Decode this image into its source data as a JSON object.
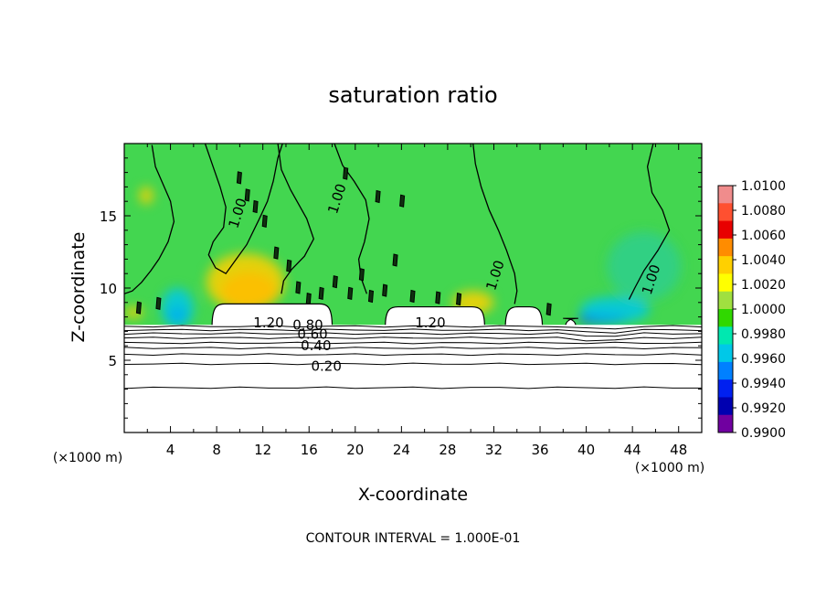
{
  "chart_data": {
    "type": "heatmap",
    "title": "saturation ratio",
    "xlabel": "X-coordinate",
    "ylabel": "Z-coordinate",
    "x_unit_label_left": "(×1000 m)",
    "x_unit_label_right": "(×1000 m)",
    "xlim": [
      0,
      50
    ],
    "ylim": [
      0,
      20
    ],
    "x_ticks": [
      4,
      8,
      12,
      16,
      20,
      24,
      28,
      32,
      36,
      40,
      44,
      48
    ],
    "y_ticks": [
      5,
      10,
      15
    ],
    "colorbar": {
      "min": 0.99,
      "max": 1.01,
      "labels": [
        "1.0100",
        "1.0080",
        "1.0060",
        "1.0040",
        "1.0020",
        "1.0000",
        "0.9980",
        "0.9960",
        "0.9940",
        "0.9920",
        "0.9900"
      ],
      "label_values": [
        1.01,
        1.008,
        1.006,
        1.004,
        1.002,
        1.0,
        0.998,
        0.996,
        0.994,
        0.992,
        0.99
      ],
      "colors": [
        "#f08c8c",
        "#ff5030",
        "#e80000",
        "#ff8c00",
        "#ffd000",
        "#ffff00",
        "#a0e040",
        "#30d800",
        "#00e8b0",
        "#00c8e8",
        "#0080ff",
        "#0020f0",
        "#0000b0",
        "#7000a0"
      ]
    },
    "background_value_color": "#43d650",
    "contour_interval_text": "CONTOUR INTERVAL = 1.000E-01",
    "contour_labels": [
      {
        "text": "1.00",
        "x": 18.8,
        "z": 16.4
      },
      {
        "text": "1.00",
        "x": 10.2,
        "z": 15.4
      },
      {
        "text": "1.00",
        "x": 32.5,
        "z": 11.1
      },
      {
        "text": "1.00",
        "x": 46.0,
        "z": 10.8
      },
      {
        "text": "1.20",
        "x": 12.5,
        "z": 7.6
      },
      {
        "text": "0.80",
        "x": 15.9,
        "z": 7.45
      },
      {
        "text": "0.60",
        "x": 16.3,
        "z": 6.8
      },
      {
        "text": "0.40",
        "x": 16.6,
        "z": 6.0
      },
      {
        "text": "0.20",
        "x": 17.5,
        "z": 4.6
      },
      {
        "text": "1.20",
        "x": 26.5,
        "z": 7.6
      }
    ],
    "low_contour_levels": [
      {
        "z": 7.35
      },
      {
        "z": 7.1
      },
      {
        "z": 6.85
      },
      {
        "z": 6.55
      },
      {
        "z": 6.2
      },
      {
        "z": 5.85
      },
      {
        "z": 5.4
      },
      {
        "z": 4.75
      },
      {
        "z": 3.1
      }
    ],
    "cloud_regions": [
      {
        "x0": 7.6,
        "x1": 18.0,
        "ztop": 8.9
      },
      {
        "x0": 22.6,
        "x1": 31.2,
        "ztop": 8.7
      },
      {
        "x0": 33.0,
        "x1": 36.2,
        "ztop": 8.7
      },
      {
        "x0": 38.2,
        "x1": 39.1,
        "ztop": 7.9
      }
    ],
    "anomalies": [
      {
        "x": 10.8,
        "z": 9.8,
        "rx": 2.4,
        "rz": 1.3,
        "color": "#ff5500"
      },
      {
        "x": 10.5,
        "z": 10.4,
        "rx": 3.4,
        "rz": 2.0,
        "color": "#ffd000"
      },
      {
        "x": 4.6,
        "z": 8.1,
        "rx": 0.9,
        "rz": 0.6,
        "color": "#0030ff"
      },
      {
        "x": 4.6,
        "z": 8.6,
        "rx": 1.4,
        "rz": 1.4,
        "color": "#00c8e8"
      },
      {
        "x": 30.2,
        "z": 9.0,
        "rx": 1.8,
        "rz": 0.8,
        "color": "#ffd000"
      },
      {
        "x": 41.5,
        "z": 7.9,
        "rx": 2.2,
        "rz": 0.4,
        "color": "#0030ff"
      },
      {
        "x": 42.5,
        "z": 8.5,
        "rx": 3.0,
        "rz": 0.9,
        "color": "#00c8e8"
      },
      {
        "x": 0.8,
        "z": 8.3,
        "rx": 0.8,
        "rz": 0.4,
        "color": "#ffd000"
      },
      {
        "x": 1.9,
        "z": 16.4,
        "rx": 0.6,
        "rz": 0.6,
        "color": "#ffd000"
      },
      {
        "x": 45.0,
        "z": 11.5,
        "rx": 3.2,
        "rz": 2.4,
        "color": "#2ecf8c"
      }
    ],
    "unity_contours": [
      [
        [
          2.4,
          19.9
        ],
        [
          2.7,
          18.4
        ],
        [
          3.3,
          17.3
        ],
        [
          4.0,
          16.0
        ],
        [
          4.3,
          14.6
        ],
        [
          3.8,
          13.2
        ],
        [
          3.0,
          12.0
        ],
        [
          2.3,
          11.2
        ],
        [
          1.5,
          10.4
        ],
        [
          0.7,
          9.8
        ],
        [
          0,
          9.6
        ]
      ],
      [
        [
          7.0,
          20
        ],
        [
          7.6,
          18.6
        ],
        [
          8.3,
          17.0
        ],
        [
          8.8,
          15.6
        ],
        [
          8.6,
          14.2
        ],
        [
          7.7,
          13.2
        ],
        [
          7.3,
          12.3
        ],
        [
          7.9,
          11.4
        ],
        [
          8.8,
          11.0
        ],
        [
          9.7,
          12.0
        ],
        [
          10.6,
          13.0
        ],
        [
          11.7,
          14.8
        ],
        [
          12.4,
          16.0
        ],
        [
          12.9,
          17.4
        ],
        [
          13.3,
          19.0
        ],
        [
          13.7,
          20
        ]
      ],
      [
        [
          13.3,
          20
        ],
        [
          13.6,
          18.2
        ],
        [
          14.4,
          16.8
        ],
        [
          15.8,
          14.8
        ],
        [
          16.4,
          13.4
        ],
        [
          15.6,
          12.2
        ],
        [
          14.5,
          11.3
        ],
        [
          13.8,
          10.5
        ],
        [
          13.6,
          9.6
        ]
      ],
      [
        [
          18.2,
          20
        ],
        [
          18.9,
          18.5
        ],
        [
          19.9,
          17.4
        ],
        [
          20.9,
          16.1
        ],
        [
          21.2,
          14.8
        ],
        [
          20.8,
          13.2
        ],
        [
          20.3,
          12.0
        ],
        [
          20.5,
          10.7
        ],
        [
          21.0,
          9.6
        ]
      ],
      [
        [
          30.2,
          20
        ],
        [
          30.4,
          18.6
        ],
        [
          30.9,
          17.0
        ],
        [
          31.6,
          15.4
        ],
        [
          32.4,
          14.0
        ],
        [
          33.1,
          12.6
        ],
        [
          33.8,
          11.0
        ],
        [
          34.0,
          9.8
        ],
        [
          33.8,
          8.9
        ]
      ],
      [
        [
          45.8,
          20
        ],
        [
          45.3,
          18.4
        ],
        [
          45.7,
          16.6
        ],
        [
          46.6,
          15.4
        ],
        [
          47.2,
          14.0
        ],
        [
          46.2,
          12.6
        ],
        [
          45.0,
          11.2
        ],
        [
          44.2,
          10.0
        ],
        [
          43.7,
          9.2
        ]
      ]
    ],
    "contour_scribbles": [
      {
        "x": 10.0,
        "z": 17.6
      },
      {
        "x": 10.7,
        "z": 16.4
      },
      {
        "x": 11.4,
        "z": 15.6
      },
      {
        "x": 12.2,
        "z": 14.6
      },
      {
        "x": 14.3,
        "z": 11.5
      },
      {
        "x": 15.1,
        "z": 10.0
      },
      {
        "x": 16.0,
        "z": 9.2
      },
      {
        "x": 17.1,
        "z": 9.6
      },
      {
        "x": 18.3,
        "z": 10.4
      },
      {
        "x": 19.6,
        "z": 9.6
      },
      {
        "x": 20.6,
        "z": 10.9
      },
      {
        "x": 21.4,
        "z": 9.4
      },
      {
        "x": 22.6,
        "z": 9.8
      },
      {
        "x": 23.5,
        "z": 11.9
      },
      {
        "x": 24.1,
        "z": 16.0
      },
      {
        "x": 19.2,
        "z": 17.9
      },
      {
        "x": 22.0,
        "z": 16.3
      },
      {
        "x": 25.0,
        "z": 9.4
      },
      {
        "x": 27.2,
        "z": 9.3
      },
      {
        "x": 29.0,
        "z": 9.2
      },
      {
        "x": 3.0,
        "z": 8.9
      },
      {
        "x": 1.3,
        "z": 8.6
      },
      {
        "x": 36.8,
        "z": 8.5
      },
      {
        "x": 13.2,
        "z": 12.4
      }
    ]
  }
}
